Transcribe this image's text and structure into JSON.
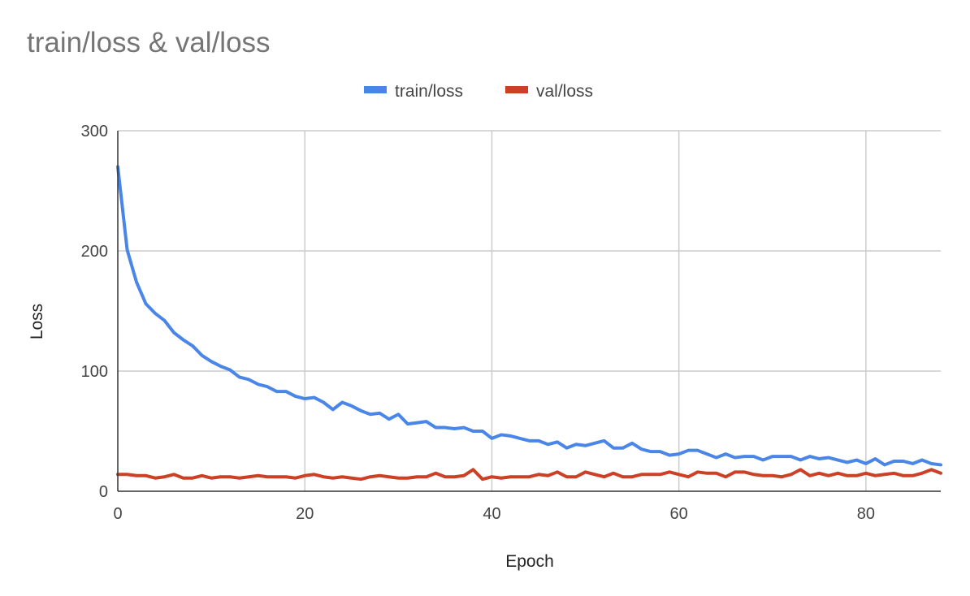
{
  "chart_data": {
    "type": "line",
    "title": "train/loss  & val/loss",
    "xlabel": "Epoch",
    "ylabel": "Loss",
    "xlim": [
      0,
      88
    ],
    "ylim": [
      0,
      300
    ],
    "xticks": [
      0,
      20,
      40,
      60,
      80
    ],
    "yticks": [
      0,
      100,
      200,
      300
    ],
    "grid": true,
    "legend_position": "top-center",
    "series": [
      {
        "name": "train/loss",
        "color": "#4a86e8",
        "x": [
          0,
          1,
          2,
          3,
          4,
          5,
          6,
          7,
          8,
          9,
          10,
          11,
          12,
          13,
          14,
          15,
          16,
          17,
          18,
          19,
          20,
          21,
          22,
          23,
          24,
          25,
          26,
          27,
          28,
          29,
          30,
          31,
          32,
          33,
          34,
          35,
          36,
          37,
          38,
          39,
          40,
          41,
          42,
          43,
          44,
          45,
          46,
          47,
          48,
          49,
          50,
          51,
          52,
          53,
          54,
          55,
          56,
          57,
          58,
          59,
          60,
          61,
          62,
          63,
          64,
          65,
          66,
          67,
          68,
          69,
          70,
          71,
          72,
          73,
          74,
          75,
          76,
          77,
          78,
          79,
          80,
          81,
          82,
          83,
          84,
          85,
          86,
          87,
          88
        ],
        "values": [
          270,
          201,
          174,
          156,
          148,
          142,
          132,
          126,
          121,
          113,
          108,
          104,
          101,
          95,
          93,
          89,
          87,
          83,
          83,
          79,
          77,
          78,
          74,
          68,
          74,
          71,
          67,
          64,
          65,
          60,
          64,
          56,
          57,
          58,
          53,
          53,
          52,
          53,
          50,
          50,
          44,
          47,
          46,
          44,
          42,
          42,
          39,
          41,
          36,
          39,
          38,
          40,
          42,
          36,
          36,
          40,
          35,
          33,
          33,
          30,
          31,
          34,
          34,
          31,
          28,
          31,
          28,
          29,
          29,
          26,
          29,
          29,
          29,
          26,
          29,
          27,
          28,
          26,
          24,
          26,
          23,
          27,
          22,
          25,
          25,
          23,
          26,
          23,
          22
        ]
      },
      {
        "name": "val/loss",
        "color": "#cc4125",
        "x": [
          0,
          1,
          2,
          3,
          4,
          5,
          6,
          7,
          8,
          9,
          10,
          11,
          12,
          13,
          14,
          15,
          16,
          17,
          18,
          19,
          20,
          21,
          22,
          23,
          24,
          25,
          26,
          27,
          28,
          29,
          30,
          31,
          32,
          33,
          34,
          35,
          36,
          37,
          38,
          39,
          40,
          41,
          42,
          43,
          44,
          45,
          46,
          47,
          48,
          49,
          50,
          51,
          52,
          53,
          54,
          55,
          56,
          57,
          58,
          59,
          60,
          61,
          62,
          63,
          64,
          65,
          66,
          67,
          68,
          69,
          70,
          71,
          72,
          73,
          74,
          75,
          76,
          77,
          78,
          79,
          80,
          81,
          82,
          83,
          84,
          85,
          86,
          87,
          88
        ],
        "values": [
          14,
          14,
          13,
          13,
          11,
          12,
          14,
          11,
          11,
          13,
          11,
          12,
          12,
          11,
          12,
          13,
          12,
          12,
          12,
          11,
          13,
          14,
          12,
          11,
          12,
          11,
          10,
          12,
          13,
          12,
          11,
          11,
          12,
          12,
          15,
          12,
          12,
          13,
          18,
          10,
          12,
          11,
          12,
          12,
          12,
          14,
          13,
          16,
          12,
          12,
          16,
          14,
          12,
          15,
          12,
          12,
          14,
          14,
          14,
          16,
          14,
          12,
          16,
          15,
          15,
          12,
          16,
          16,
          14,
          13,
          13,
          12,
          14,
          18,
          13,
          15,
          13,
          15,
          13,
          13,
          15,
          13,
          14,
          15,
          13,
          13,
          15,
          18,
          15
        ]
      }
    ]
  }
}
